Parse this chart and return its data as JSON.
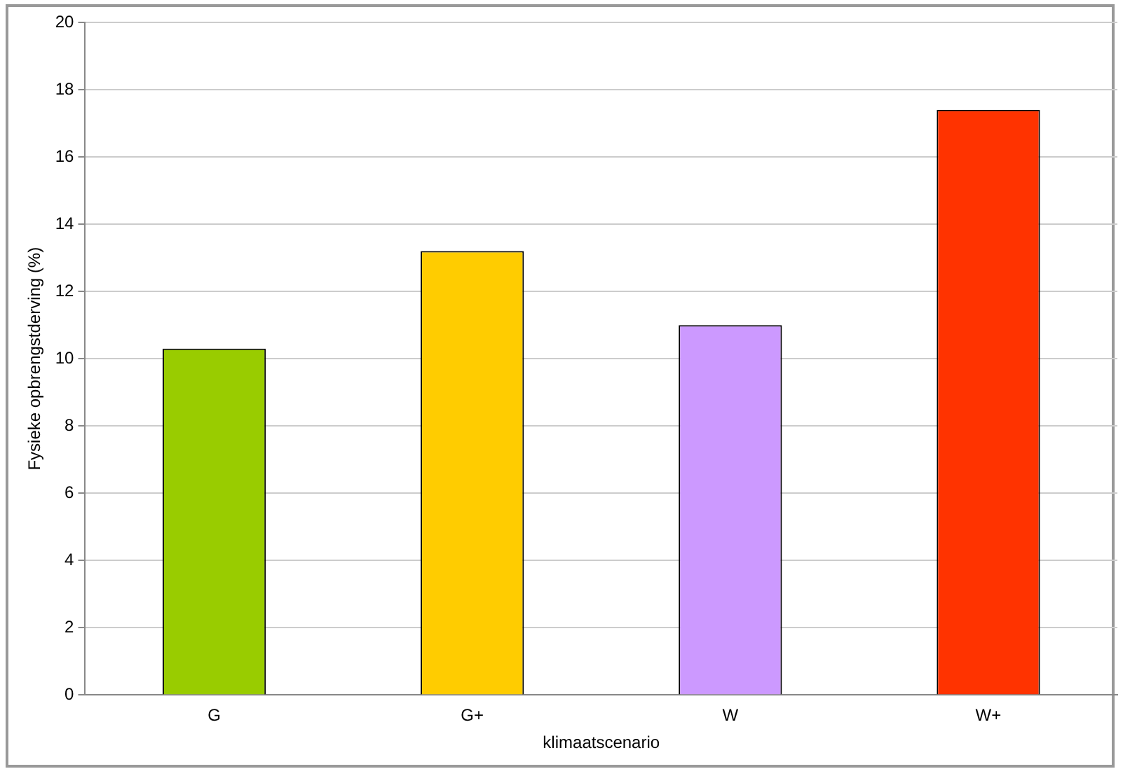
{
  "chart_data": {
    "type": "bar",
    "xlabel": "klimaatscenario",
    "ylabel": "Fysieke opbrengstderving (%)",
    "categories": [
      "G",
      "G+",
      "W",
      "W+"
    ],
    "values": [
      10.3,
      13.2,
      11.0,
      17.4
    ],
    "colors": [
      "#99cc00",
      "#ffcc00",
      "#cc99ff",
      "#ff3300"
    ],
    "ylim": [
      0,
      20
    ],
    "yticks": [
      0,
      2,
      4,
      6,
      8,
      10,
      12,
      14,
      16,
      18,
      20
    ],
    "grid": "y",
    "legend": false
  }
}
